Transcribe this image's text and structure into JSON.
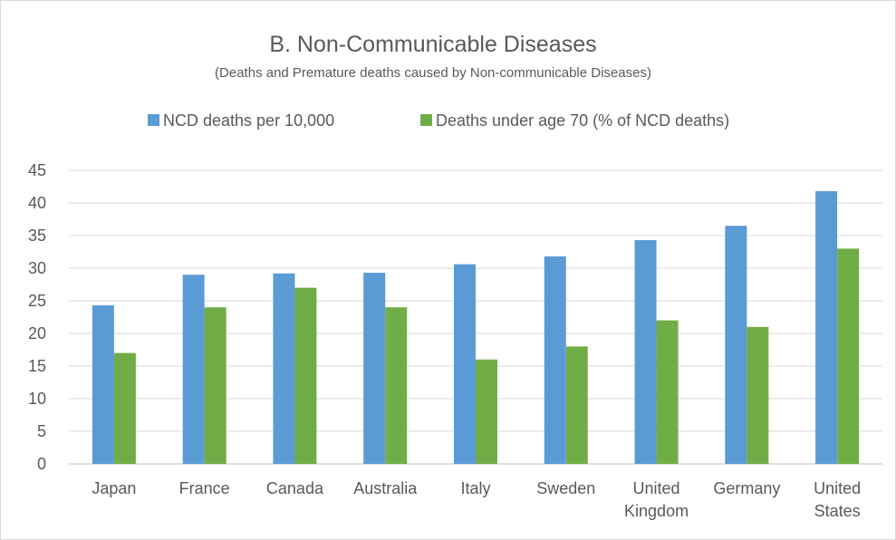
{
  "chart_data": {
    "type": "bar",
    "title": "B. Non-Communicable Diseases",
    "subtitle": "(Deaths and Premature deaths caused by Non-communicable Diseases)",
    "categories": [
      [
        "Japan"
      ],
      [
        "France"
      ],
      [
        "Canada"
      ],
      [
        "Australia"
      ],
      [
        "Italy"
      ],
      [
        "Sweden"
      ],
      [
        "United",
        "Kingdom"
      ],
      [
        "Germany"
      ],
      [
        "United",
        "States"
      ]
    ],
    "series": [
      {
        "name": "NCD deaths per 10,000",
        "color": "#5b9bd5",
        "values": [
          24.3,
          29.0,
          29.2,
          29.3,
          30.6,
          31.8,
          34.3,
          36.5,
          41.8
        ]
      },
      {
        "name": "Deaths under age 70 (% of NCD deaths)",
        "color": "#70ad47",
        "values": [
          17,
          24,
          27,
          24,
          16,
          18,
          22,
          21,
          33
        ]
      }
    ],
    "yticks": [
      0,
      5,
      10,
      15,
      20,
      25,
      30,
      35,
      40,
      45
    ],
    "ylim": [
      0,
      45
    ],
    "xlabel": "",
    "ylabel": "",
    "grid": true,
    "legend_position": "top"
  }
}
